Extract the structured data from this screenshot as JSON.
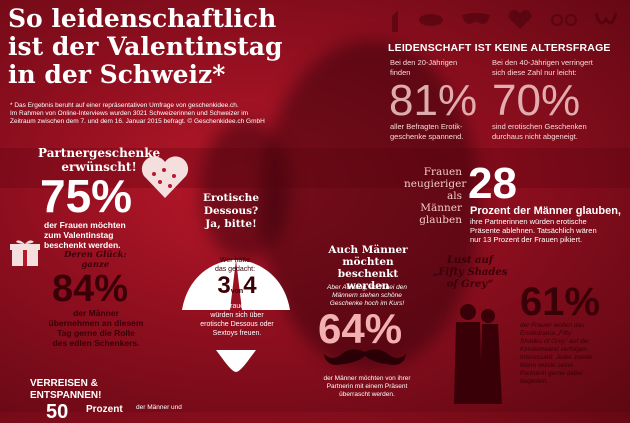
{
  "title": {
    "line1": "So leidenschaftlich",
    "line2": "ist der Valentinstag",
    "line3": "in der Schweiz*"
  },
  "footnote": {
    "l1": "* Das Ergebnis beruht auf einer repräsentativen Umfrage von geschenkidee.ch.",
    "l2": "Im Rahmen von Online-Interviews wurden 3021 Schweizerinnen und Schweizer im",
    "l3": "Zeitraum zwischen dem 7. und dem 16. Januar 2015 befragt. © Geschenkidee.ch GmbH"
  },
  "age": {
    "heading": "LEIDENSCHAFT IST KEINE ALTERSFRAGE",
    "left_intro1": "Bei den 20-Jährigen",
    "left_intro2": "finden",
    "left_pct": "81%",
    "left_desc1": "aller Befragten Erotik-",
    "left_desc2": "geschenke spannend.",
    "right_intro1": "Bei den 40-Jährigen verringert",
    "right_intro2": "sich diese Zahl nur leicht:",
    "right_pct": "70%",
    "right_desc1": "sind erotischen Geschenken",
    "right_desc2": "durchaus nicht abgeneigt."
  },
  "partner": {
    "h1": "Partnergeschenke",
    "h2": "erwünscht!",
    "pct": "75%",
    "d1": "der Frauen möchten",
    "d2": "zum Valentinstag",
    "d3": "beschenkt werden."
  },
  "giver": {
    "i1": "Deren Glück:",
    "i2": "ganze",
    "pct": "84%",
    "d1": "der Männer",
    "d2": "übernehmen an diesem",
    "d3": "Tag gerne die Rolle",
    "d4": "des edlen Schenkers."
  },
  "dessous": {
    "h1": "Erotische",
    "h2": "Dessous?",
    "h3": "Ja, bitte!",
    "i1": "Wer hätte",
    "i2": "das gedacht:",
    "a": "3",
    "von": "von",
    "b": "4",
    "d1": "Frauen",
    "d2": "würden sich über",
    "d3": "erotische Dessous oder",
    "d4": "Sextoys freuen."
  },
  "curious": {
    "l1": "Frauen",
    "l2": "neugieriger",
    "l3": "als Männer",
    "l4": "glauben",
    "num": "28",
    "d1": "Prozent der Männer glauben,",
    "d2": "ihre Partnerinnen würden erotische",
    "d3": "Präsente ablehnen. Tatsächlich wären",
    "d4": "nur 13 Prozent der Frauen pikiert."
  },
  "men": {
    "h1": "Auch Männer",
    "h2": "möchten beschenkt",
    "h3": "werden",
    "i1": "Aber Achtung, auch bei den",
    "i2": "Männern stehen schöne",
    "i3": "Geschenke hoch im Kurs!",
    "pct": "64%",
    "d1": "der Männer möchten von ihrer",
    "d2": "Partnerin mit einem Präsent",
    "d3": "überrascht werden."
  },
  "fifty": {
    "h1": "Lust auf",
    "h2": "„Fifty Shades",
    "h3": "of Grey“",
    "pct": "61%",
    "d1": "der Frauen wollen das",
    "d2": "Erotikdrama „Fifty",
    "d3": "Shades of Grey“ auf der",
    "d4": "Kinoleinwand verfolgen.",
    "d5": "Interessant: Jeder zweite",
    "d6": "Mann würde seine",
    "d7": "Partnerin gerne dabei",
    "d8": "begleiten."
  },
  "travel": {
    "h1": "VERREISEN &",
    "h2": "ENTSPANNEN!",
    "num": "50",
    "word": "Prozent",
    "extra": "der Männer und"
  },
  "colors": {
    "background": "#8f0f1f",
    "accent_dark": "#3a0008",
    "text_light": "#ffffff"
  }
}
